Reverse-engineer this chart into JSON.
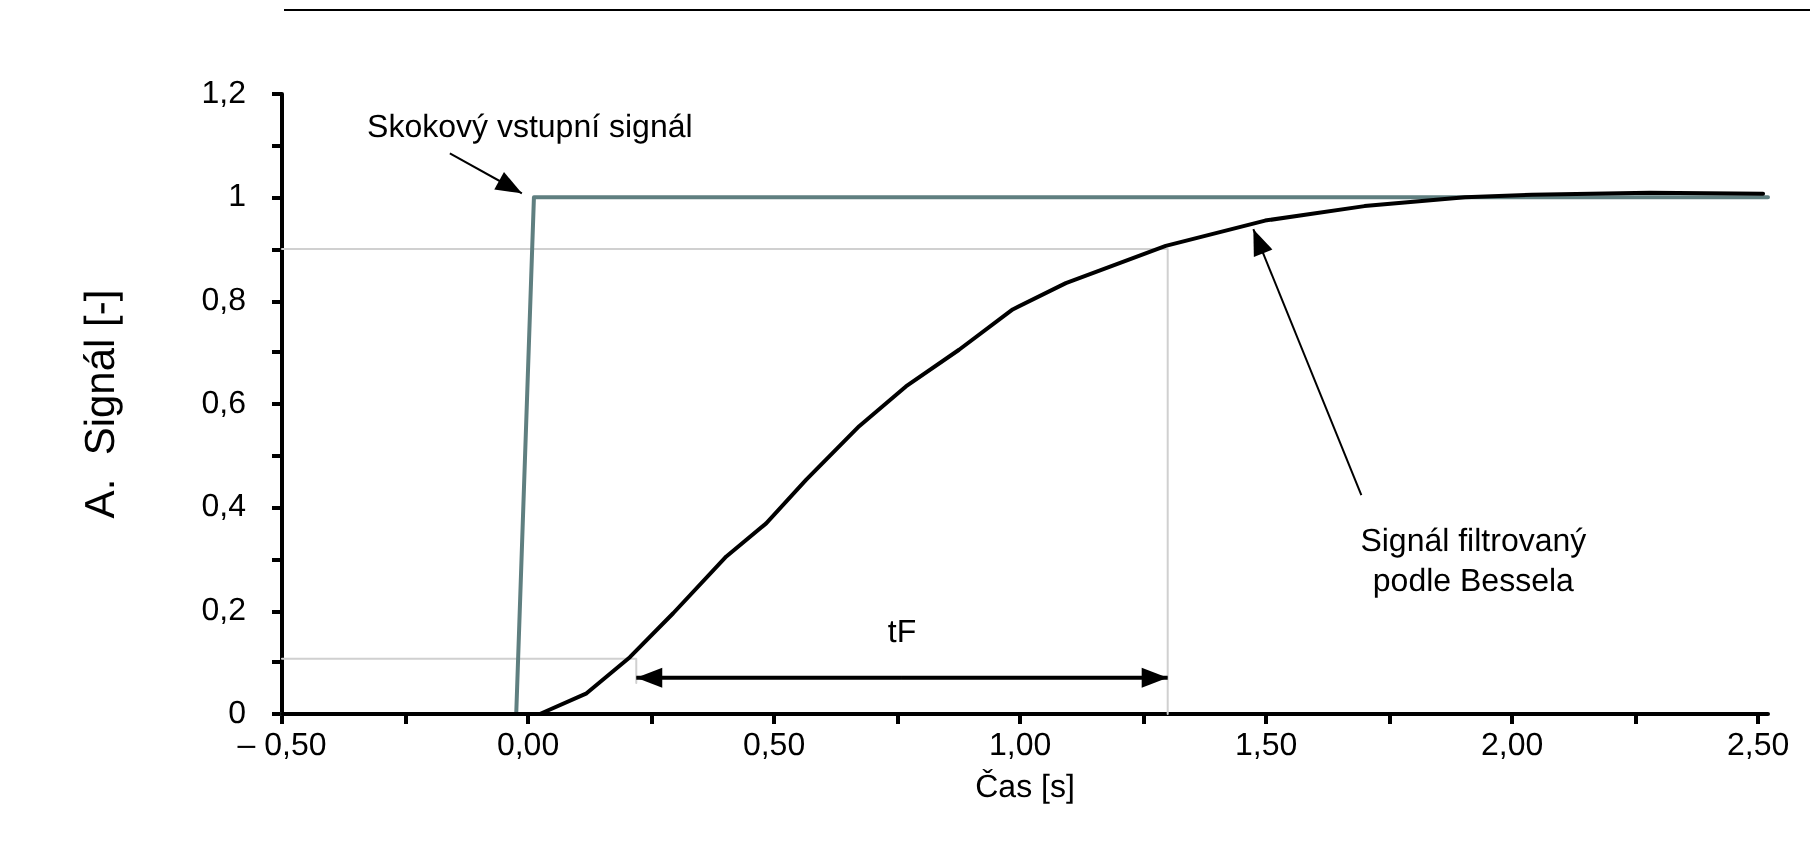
{
  "chart_data": {
    "type": "line",
    "xlabel": "Čas [s]",
    "ylabel": "A.  Signál [-]",
    "xlim": [
      -0.5,
      2.52
    ],
    "ylim": [
      0,
      1.2
    ],
    "xticks": [
      {
        "value": -0.5,
        "label": "– 0,50"
      },
      {
        "value": -0.25,
        "label": null
      },
      {
        "value": 0,
        "label": "0,00"
      },
      {
        "value": 0.25,
        "label": null
      },
      {
        "value": 0.5,
        "label": "0,50"
      },
      {
        "value": 0.75,
        "label": null
      },
      {
        "value": 1,
        "label": "1,00"
      },
      {
        "value": 1.25,
        "label": null
      },
      {
        "value": 1.5,
        "label": "1,50"
      },
      {
        "value": 1.75,
        "label": null
      },
      {
        "value": 2,
        "label": "2,00"
      },
      {
        "value": 2.25,
        "label": null
      },
      {
        "value": 2.5,
        "label": "2,50"
      }
    ],
    "yticks": [
      0,
      {
        "value": 0.1,
        "label": null
      },
      {
        "value": 0.2,
        "label": "0,2"
      },
      {
        "value": 0.3,
        "label": null
      },
      {
        "value": 0.4,
        "label": "0,4"
      },
      {
        "value": 0.5,
        "label": null
      },
      {
        "value": 0.6,
        "label": "0,6"
      },
      {
        "value": 0.7,
        "label": null
      },
      {
        "value": 0.8,
        "label": "0,8"
      },
      {
        "value": 0.9,
        "label": null
      },
      1,
      {
        "value": 1.1,
        "label": null
      },
      {
        "value": 1.2,
        "label": "1,2"
      }
    ],
    "grid": false,
    "marker": "none",
    "line_style": "solid",
    "series": [
      {
        "color": "#d0d0d0",
        "x": [
          -0.5,
          1.3,
          1.3
        ],
        "values": [
          0.9,
          0.9,
          0
        ]
      },
      {
        "color": "#d0d0d0",
        "x": [
          -0.5,
          0.22,
          0.22
        ],
        "values": [
          0.107,
          0.107,
          0.06
        ]
      },
      {
        "color": "#5f7f80",
        "x": [
          -0.5,
          -0.024,
          0.012,
          2.52
        ],
        "values": [
          0,
          0,
          1,
          1
        ]
      },
      {
        "color": "#000000",
        "x": [
          -0.5,
          0.0,
          0.024,
          0.119,
          0.207,
          0.295,
          0.403,
          0.484,
          0.565,
          0.673,
          0.768,
          0.876,
          0.985,
          1.093,
          1.296,
          1.498,
          1.7,
          1.904,
          2.04,
          2.28,
          2.51
        ],
        "values": [
          0,
          0,
          0,
          0.04,
          0.11,
          0.195,
          0.305,
          0.369,
          0.453,
          0.557,
          0.634,
          0.705,
          0.783,
          0.834,
          0.906,
          0.955,
          0.983,
          1.0,
          1.005,
          1.009,
          1.007
        ]
      }
    ],
    "annotations": [
      {
        "text": "Skokový vstupní signál",
        "x": 0.02,
        "y": 1.0
      },
      {
        "text": "Signál filtrovaný\npodle Bessela",
        "x": 1.47,
        "y": 0.95
      },
      {
        "text": "tF",
        "x": 1.3,
        "y": 0.07
      }
    ]
  }
}
